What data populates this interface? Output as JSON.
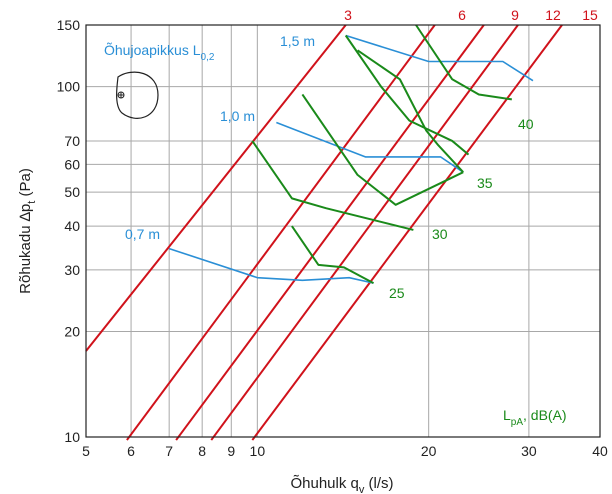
{
  "chart_data": {
    "type": "line",
    "x_scale": "log",
    "y_scale": "log",
    "xlim": [
      5,
      40
    ],
    "ylim": [
      10,
      150
    ],
    "x_ticks": [
      5,
      6,
      7,
      8,
      9,
      10,
      20,
      30,
      40
    ],
    "y_ticks": [
      10,
      20,
      30,
      40,
      50,
      60,
      70,
      100,
      150
    ],
    "xlabel": {
      "main": "Õhuhulk q",
      "sub": "v",
      "unit": " (l/s)"
    },
    "ylabel": {
      "main": "Rõhukadu ∆p",
      "sub": "t",
      "unit": " (Pa)"
    },
    "grid": true,
    "colors": {
      "red": "#d0121b",
      "blue": "#2a8fd6",
      "green": "#1a8a1a",
      "grid": "#a8a8a8"
    },
    "red_series": [
      {
        "name": "3",
        "points": [
          [
            5,
            17.6
          ],
          [
            14.3,
            150
          ]
        ]
      },
      {
        "name": "6",
        "points": [
          [
            5.9,
            9.8
          ],
          [
            20.5,
            150
          ]
        ]
      },
      {
        "name": "9",
        "points": [
          [
            7.2,
            9.8
          ],
          [
            25,
            150
          ]
        ]
      },
      {
        "name": "12",
        "points": [
          [
            8.3,
            9.8
          ],
          [
            28.7,
            150
          ]
        ]
      },
      {
        "name": "15",
        "points": [
          [
            9.8,
            9.8
          ],
          [
            34.3,
            150
          ]
        ]
      }
    ],
    "blue_series": [
      {
        "name": "0,7 m",
        "points": [
          [
            7,
            34.5
          ],
          [
            10,
            28.5
          ],
          [
            12,
            28
          ],
          [
            14.5,
            28.5
          ],
          [
            16,
            27.5
          ]
        ]
      },
      {
        "name": "1,0 m",
        "points": [
          [
            10.8,
            79
          ],
          [
            15.5,
            63
          ],
          [
            19.5,
            63
          ],
          [
            21,
            63
          ],
          [
            23,
            57
          ]
        ]
      },
      {
        "name": "1,5 m",
        "points": [
          [
            14.3,
            140
          ],
          [
            20,
            118
          ],
          [
            27,
            118
          ],
          [
            30.5,
            104
          ]
        ]
      }
    ],
    "green_series": [
      {
        "name": "25",
        "points": [
          [
            11.5,
            40
          ],
          [
            12.8,
            31
          ],
          [
            14.2,
            30.5
          ],
          [
            16,
            27.5
          ]
        ]
      },
      {
        "name": "30",
        "points": [
          [
            9.8,
            70
          ],
          [
            11.5,
            48
          ],
          [
            13.2,
            45
          ],
          [
            18.8,
            39
          ]
        ]
      },
      {
        "name": "35",
        "points": [
          [
            12,
            95
          ],
          [
            15,
            56
          ],
          [
            17.5,
            46
          ],
          [
            23,
            57
          ]
        ]
      },
      {
        "name": "40",
        "points": [
          [
            15,
            127
          ],
          [
            17.8,
            105
          ],
          [
            19.8,
            75
          ],
          [
            20.8,
            68
          ],
          [
            23,
            57
          ]
        ]
      }
    ],
    "green_series_upper": [
      {
        "points": [
          [
            14.3,
            140
          ],
          [
            16.5,
            100
          ],
          [
            18.5,
            80
          ],
          [
            22,
            70
          ],
          [
            23.5,
            64
          ]
        ]
      },
      {
        "points": [
          [
            19,
            150
          ],
          [
            22,
            105
          ],
          [
            24.5,
            95
          ],
          [
            28,
            92
          ]
        ]
      }
    ],
    "red_labels": [
      "3",
      "6",
      "9",
      "12",
      "15"
    ],
    "blue_labels": [
      "0,7 m",
      "1,0 m",
      "1,5 m"
    ],
    "green_labels": [
      "25",
      "30",
      "35",
      "40"
    ],
    "legend_title": {
      "main": "Õhujoapikkus L",
      "sub": "0,2"
    },
    "lpa_label": {
      "main": "L",
      "sub": "pA",
      "rest": ", dB(A)"
    }
  }
}
